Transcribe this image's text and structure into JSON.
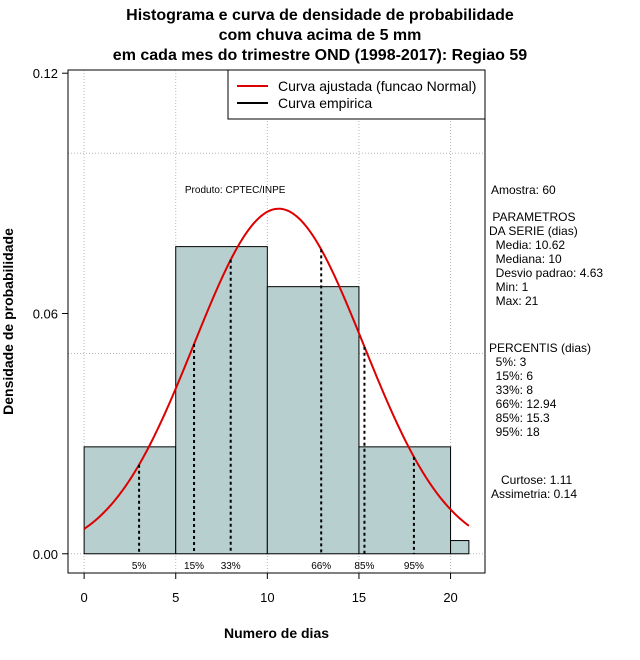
{
  "chart_data": {
    "type": "bar",
    "title_lines": [
      "Histograma e curva de densidade de probabilidade",
      "com chuva acima de 5 mm",
      "em cada mes do trimestre OND (1998-2017): Regiao 59"
    ],
    "xlabel": "Numero de dias",
    "ylabel": "Densidade de probabilidade",
    "xlim": [
      -0.88,
      21.88
    ],
    "ylim": [
      -0.0048,
      0.1208
    ],
    "xticks": [
      0,
      5,
      10,
      15,
      20
    ],
    "yticks": [
      0.0,
      0.06,
      0.12
    ],
    "ytick_labels": [
      "0.00",
      "0.06",
      "0.12"
    ],
    "grid": true,
    "grid_y": [
      0,
      0.05,
      0.1
    ],
    "grid_x": [
      0,
      5,
      10,
      15,
      20
    ],
    "bins": [
      {
        "from": 0,
        "to": 5,
        "density": 0.0267
      },
      {
        "from": 5,
        "to": 10,
        "density": 0.0767
      },
      {
        "from": 10,
        "to": 15,
        "density": 0.0667
      },
      {
        "from": 15,
        "to": 20,
        "density": 0.0267
      },
      {
        "from": 20,
        "to": 21,
        "density": 0.0033
      }
    ],
    "bar_color": "#b8cfcf",
    "normal_fit": {
      "mean": 10.62,
      "sd": 4.63,
      "x_from": 0,
      "x_to": 21,
      "color": "#dd0000"
    },
    "percentile_lines": [
      {
        "label": "5%",
        "x": 3
      },
      {
        "label": "15%",
        "x": 6
      },
      {
        "label": "33%",
        "x": 8
      },
      {
        "label": "66%",
        "x": 12.94
      },
      {
        "label": "85%",
        "x": 15.3
      },
      {
        "label": "95%",
        "x": 18
      }
    ],
    "legend": {
      "position": "top-right",
      "entries": [
        {
          "label": "Curva ajustada (funcao Normal)",
          "color": "#dd0000"
        },
        {
          "label": "Curva empirica",
          "color": "#000000"
        }
      ]
    },
    "annotation": "Produto: CPTEC/INPE"
  },
  "side_panel": {
    "amostra": "Amostra: 60",
    "parametros": " PARAMETROS\nDA SERIE (dias)\n  Media: 10.62\n  Mediana: 10\n  Desvio padrao: 4.63\n  Min: 1\n  Max: 21",
    "percentis": "PERCENTIS (dias)\n  5%: 3\n  15%: 6\n  33%: 8\n  66%: 12.94\n  85%: 15.3\n  95%: 18",
    "curtose": "   Curtose: 1.11\nAssimetria: 0.14"
  }
}
